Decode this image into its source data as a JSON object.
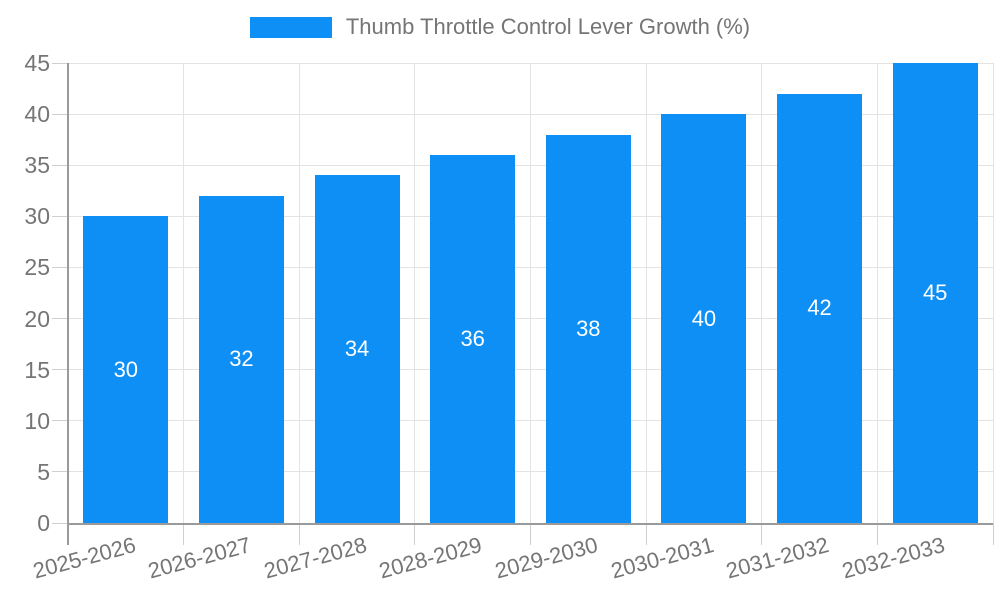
{
  "chart_data": {
    "type": "bar",
    "title": "Thumb Throttle Control Lever Growth (%)",
    "categories": [
      "2025-2026",
      "2026-2027",
      "2027-2028",
      "2028-2029",
      "2029-2030",
      "2030-2031",
      "2031-2032",
      "2032-2033"
    ],
    "values": [
      30,
      32,
      34,
      36,
      38,
      40,
      42,
      45
    ],
    "series": [
      {
        "name": "Thumb Throttle Control Lever Growth (%)",
        "values": [
          30,
          32,
          34,
          36,
          38,
          40,
          42,
          45
        ]
      }
    ],
    "xlabel": "",
    "ylabel": "",
    "ylim": [
      0,
      45
    ],
    "ytick_step": 5,
    "ytick_labels": [
      "0",
      "5",
      "10",
      "15",
      "20",
      "25",
      "30",
      "35",
      "40",
      "45"
    ],
    "grid": true,
    "legend_position": "top-center",
    "colors": {
      "bar": "#0D8FF5",
      "axis_text": "#757575",
      "value_label": "#ffffff",
      "gridline": "#e3e3e3",
      "tick": "#cfcfcf",
      "axis_line": "#9a9a9a",
      "background": "#ffffff"
    }
  }
}
